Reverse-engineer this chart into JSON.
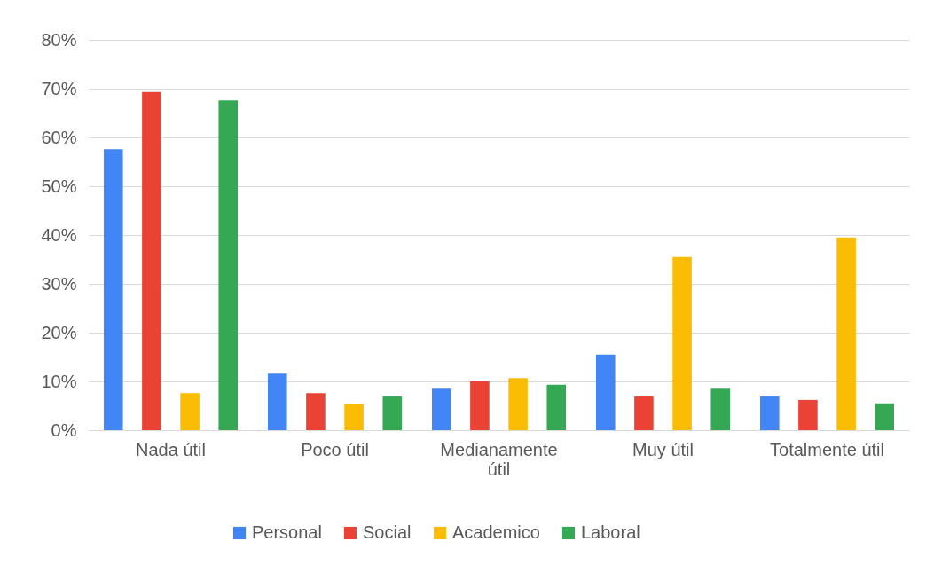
{
  "chart_data": {
    "type": "bar",
    "categories": [
      "Nada útil",
      "Poco útil",
      "Medianamente útil",
      "Muy útil",
      "Totalmente útil"
    ],
    "series": [
      {
        "name": "Personal",
        "color": "#4285f4",
        "values": [
          57.6,
          11.6,
          8.5,
          15.5,
          6.9
        ]
      },
      {
        "name": "Social",
        "color": "#ea4335",
        "values": [
          69.3,
          7.6,
          10,
          6.9,
          6.2
        ]
      },
      {
        "name": "Academico",
        "color": "#fbbc04",
        "values": [
          7.6,
          5.3,
          10.7,
          35.5,
          39.5
        ]
      },
      {
        "name": "Laboral",
        "color": "#34a853",
        "values": [
          67.6,
          6.9,
          9.3,
          8.5,
          5.5
        ]
      }
    ],
    "ylim": [
      0,
      80
    ],
    "yticks": [
      {
        "value": 0,
        "label": "0%"
      },
      {
        "value": 10,
        "label": "10%"
      },
      {
        "value": 20,
        "label": "20%"
      },
      {
        "value": 30,
        "label": "30%"
      },
      {
        "value": 40,
        "label": "40%"
      },
      {
        "value": 50,
        "label": "50%"
      },
      {
        "value": 60,
        "label": "60%"
      },
      {
        "value": 70,
        "label": "70%"
      },
      {
        "value": 80,
        "label": "80%"
      }
    ],
    "grid": "y",
    "legend": "bottom"
  }
}
